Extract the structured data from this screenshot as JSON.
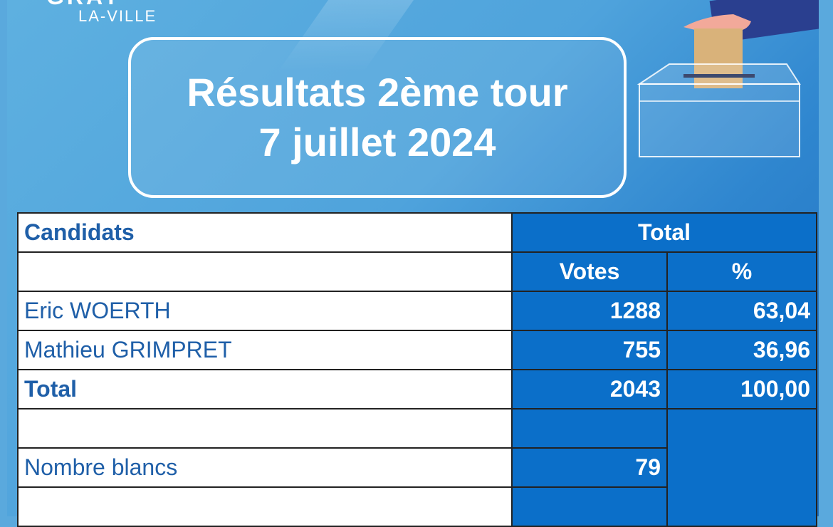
{
  "logo": {
    "name": "GRAY",
    "sub": "LA-VILLE"
  },
  "title": {
    "line1": "Résultats 2ème tour",
    "line2": "7 juillet 2024"
  },
  "table": {
    "header_candidates": "Candidats",
    "header_total": "Total",
    "header_votes": "Votes",
    "header_percent": "%",
    "rows": [
      {
        "label": "Eric WOERTH",
        "votes": "1288",
        "percent": "63,04"
      },
      {
        "label": "Mathieu GRIMPRET",
        "votes": "755",
        "percent": "36,96"
      }
    ],
    "total": {
      "label": "Total",
      "votes": "2043",
      "percent": "100,00"
    },
    "blancs": {
      "label": "Nombre blancs",
      "votes": "79"
    }
  },
  "colors": {
    "cell_blue": "#0b6fc9",
    "label_text": "#1f5fa8",
    "banner": "#5aa9dd"
  }
}
